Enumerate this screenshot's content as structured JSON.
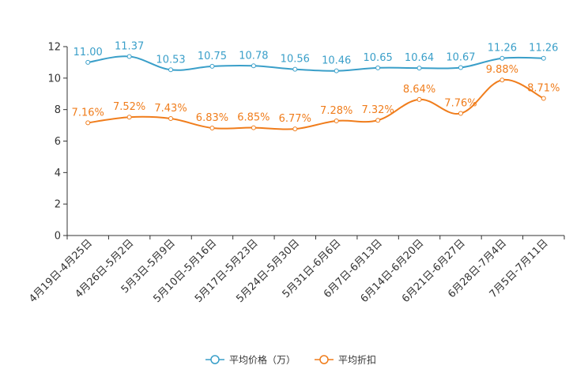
{
  "chart_data": {
    "type": "line",
    "categories": [
      "4月19日-4月25日",
      "4月26日-5月2日",
      "5月3日-5月9日",
      "5月10日-5月16日",
      "5月17日-5月23日",
      "5月24日-5月30日",
      "5月31日-6月6日",
      "6月7日-6月13日",
      "6月14日-6月20日",
      "6月21日-6月27日",
      "6月28日-7月4日",
      "7月5日-7月11日"
    ],
    "series": [
      {
        "name": "平均价格（万）",
        "color": "#3a9fc9",
        "values": [
          11.0,
          11.37,
          10.53,
          10.75,
          10.78,
          10.56,
          10.46,
          10.65,
          10.64,
          10.67,
          11.26,
          11.26
        ],
        "labels": [
          "11.00",
          "11.37",
          "10.53",
          "10.75",
          "10.78",
          "10.56",
          "10.46",
          "10.65",
          "10.64",
          "10.67",
          "11.26",
          "11.26"
        ]
      },
      {
        "name": "平均折扣",
        "color": "#f07d1c",
        "values": [
          7.16,
          7.52,
          7.43,
          6.83,
          6.85,
          6.77,
          7.28,
          7.32,
          8.64,
          7.76,
          9.88,
          8.71
        ],
        "labels": [
          "7.16%",
          "7.52%",
          "7.43%",
          "6.83%",
          "6.85%",
          "6.77%",
          "7.28%",
          "7.32%",
          "8.64%",
          "7.76%",
          "9.88%",
          "8.71%"
        ]
      }
    ],
    "yticks": [
      "0",
      "2",
      "4",
      "6",
      "8",
      "10",
      "12"
    ],
    "ylim": [
      0,
      12
    ],
    "legend_position": "bottom",
    "title": "",
    "xlabel": "",
    "ylabel": ""
  }
}
